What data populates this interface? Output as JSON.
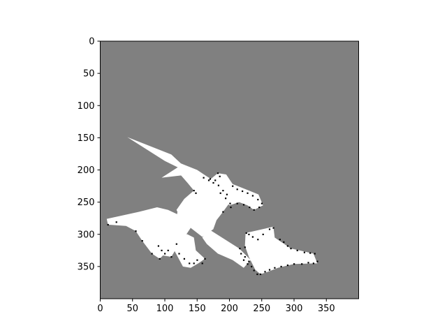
{
  "chart_data": {
    "type": "heatmap",
    "title": "",
    "xlabel": "",
    "ylabel": "",
    "xlim": [
      0,
      400
    ],
    "ylim": [
      400,
      0
    ],
    "x_ticks": [
      0,
      50,
      100,
      150,
      200,
      250,
      300,
      350
    ],
    "y_ticks": [
      0,
      50,
      100,
      150,
      200,
      250,
      300,
      350
    ],
    "colors": {
      "unknown": "#808080",
      "free": "#ffffff",
      "occupied": "#000000"
    },
    "free_regions": [
      [
        [
          42,
          149
        ],
        [
          110,
          176
        ],
        [
          125,
          190
        ],
        [
          145,
          200
        ],
        [
          130,
          208
        ],
        [
          95,
          212
        ],
        [
          120,
          196
        ],
        [
          100,
          186
        ]
      ],
      [
        [
          125,
          190
        ],
        [
          150,
          200
        ],
        [
          165,
          210
        ],
        [
          185,
          222
        ],
        [
          197,
          230
        ],
        [
          201,
          250
        ],
        [
          190,
          265
        ],
        [
          180,
          278
        ],
        [
          175,
          292
        ],
        [
          158,
          304
        ],
        [
          140,
          290
        ],
        [
          125,
          276
        ],
        [
          118,
          262
        ],
        [
          130,
          245
        ],
        [
          145,
          232
        ],
        [
          135,
          220
        ],
        [
          122,
          205
        ]
      ],
      [
        [
          168,
          292
        ],
        [
          215,
          322
        ],
        [
          233,
          340
        ],
        [
          222,
          352
        ],
        [
          205,
          340
        ],
        [
          182,
          330
        ],
        [
          165,
          315
        ],
        [
          158,
          305
        ]
      ],
      [
        [
          225,
          298
        ],
        [
          260,
          290
        ],
        [
          268,
          288
        ],
        [
          270,
          305
        ],
        [
          295,
          322
        ],
        [
          330,
          330
        ],
        [
          336,
          345
        ],
        [
          300,
          346
        ],
        [
          275,
          352
        ],
        [
          260,
          358
        ],
        [
          248,
          362
        ],
        [
          240,
          355
        ],
        [
          230,
          335
        ],
        [
          224,
          318
        ]
      ],
      [
        [
          170,
          215
        ],
        [
          182,
          205
        ],
        [
          195,
          207
        ],
        [
          205,
          222
        ],
        [
          230,
          232
        ],
        [
          245,
          238
        ],
        [
          252,
          255
        ],
        [
          238,
          262
        ],
        [
          228,
          255
        ],
        [
          215,
          250
        ],
        [
          200,
          255
        ],
        [
          188,
          240
        ]
      ],
      [
        [
          10,
          276
        ],
        [
          60,
          265
        ],
        [
          88,
          258
        ],
        [
          105,
          262
        ],
        [
          122,
          270
        ],
        [
          140,
          290
        ],
        [
          130,
          305
        ],
        [
          118,
          315
        ],
        [
          105,
          325
        ],
        [
          92,
          338
        ],
        [
          80,
          330
        ],
        [
          65,
          310
        ],
        [
          55,
          295
        ],
        [
          40,
          287
        ],
        [
          12,
          285
        ]
      ],
      [
        [
          118,
          298
        ],
        [
          135,
          300
        ],
        [
          145,
          305
        ],
        [
          148,
          325
        ],
        [
          162,
          338
        ],
        [
          152,
          345
        ],
        [
          140,
          352
        ],
        [
          128,
          350
        ],
        [
          120,
          335
        ],
        [
          112,
          320
        ]
      ],
      [
        [
          95,
          295
        ],
        [
          115,
          300
        ],
        [
          120,
          318
        ],
        [
          110,
          335
        ],
        [
          92,
          332
        ],
        [
          88,
          318
        ]
      ],
      [
        [
          120,
          262
        ],
        [
          135,
          262
        ],
        [
          140,
          272
        ],
        [
          128,
          280
        ],
        [
          118,
          275
        ]
      ]
    ],
    "occupied_points": [
      [
        12,
        285
      ],
      [
        25,
        281
      ],
      [
        55,
        295
      ],
      [
        65,
        310
      ],
      [
        80,
        330
      ],
      [
        92,
        338
      ],
      [
        105,
        325
      ],
      [
        118,
        315
      ],
      [
        122,
        330
      ],
      [
        130,
        338
      ],
      [
        138,
        345
      ],
      [
        145,
        345
      ],
      [
        150,
        340
      ],
      [
        158,
        345
      ],
      [
        162,
        338
      ],
      [
        145,
        232
      ],
      [
        148,
        236
      ],
      [
        160,
        212
      ],
      [
        168,
        216
      ],
      [
        175,
        220
      ],
      [
        183,
        224
      ],
      [
        190,
        232
      ],
      [
        196,
        238
      ],
      [
        201,
        252
      ],
      [
        205,
        225
      ],
      [
        212,
        230
      ],
      [
        220,
        233
      ],
      [
        228,
        236
      ],
      [
        236,
        240
      ],
      [
        244,
        246
      ],
      [
        250,
        252
      ],
      [
        246,
        258
      ],
      [
        238,
        262
      ],
      [
        231,
        258
      ],
      [
        222,
        254
      ],
      [
        212,
        252
      ],
      [
        202,
        258
      ],
      [
        190,
        265
      ],
      [
        182,
        205
      ],
      [
        185,
        210
      ],
      [
        170,
        214
      ],
      [
        178,
        216
      ],
      [
        186,
        236
      ],
      [
        194,
        244
      ],
      [
        226,
        298
      ],
      [
        230,
        300
      ],
      [
        236,
        304
      ],
      [
        244,
        308
      ],
      [
        252,
        300
      ],
      [
        262,
        292
      ],
      [
        268,
        290
      ],
      [
        224,
        320
      ],
      [
        224,
        335
      ],
      [
        230,
        342
      ],
      [
        234,
        350
      ],
      [
        238,
        356
      ],
      [
        243,
        362
      ],
      [
        248,
        362
      ],
      [
        255,
        358
      ],
      [
        262,
        355
      ],
      [
        270,
        352
      ],
      [
        280,
        350
      ],
      [
        290,
        348
      ],
      [
        300,
        346
      ],
      [
        312,
        346
      ],
      [
        322,
        344
      ],
      [
        330,
        345
      ],
      [
        336,
        342
      ],
      [
        332,
        330
      ],
      [
        325,
        329
      ],
      [
        316,
        328
      ],
      [
        305,
        325
      ],
      [
        295,
        322
      ],
      [
        290,
        318
      ],
      [
        284,
        312
      ],
      [
        278,
        308
      ],
      [
        216,
        322
      ],
      [
        218,
        330
      ],
      [
        222,
        340
      ],
      [
        228,
        346
      ],
      [
        110,
        335
      ],
      [
        100,
        330
      ],
      [
        95,
        325
      ],
      [
        90,
        318
      ]
    ]
  }
}
